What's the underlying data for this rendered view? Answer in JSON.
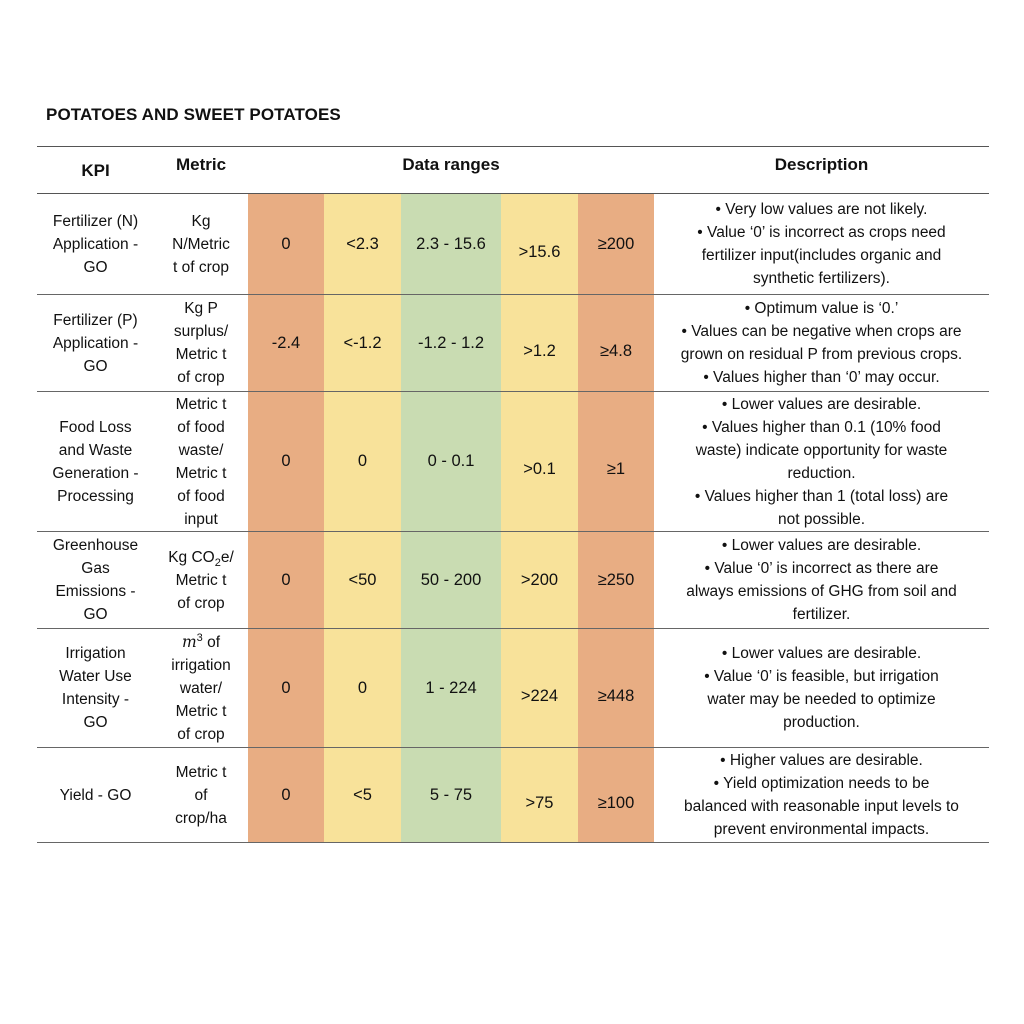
{
  "title": "POTATOES AND SWEET POTATOES",
  "headers": {
    "kpi": "KPI",
    "metric": "Metric",
    "ranges": "Data ranges",
    "description": "Description"
  },
  "colors": {
    "red_range": "#e8ad83",
    "yellow_range": "#f8e29a",
    "green_range": "#c9dcb2"
  },
  "rows": [
    {
      "kpi": [
        "Fertilizer (N)",
        "Application -",
        "GO"
      ],
      "metric": [
        "Kg",
        "N/Metric",
        "t of crop"
      ],
      "ranges": [
        "0",
        "<2.3",
        "2.3 - 15.6",
        ">15.6",
        "≥200"
      ],
      "description": [
        "• Very low values are not likely.",
        "• Value ‘0’ is incorrect as crops need",
        "fertilizer input(includes organic and",
        "synthetic fertilizers)."
      ]
    },
    {
      "kpi": [
        "Fertilizer (P)",
        "Application -",
        "GO"
      ],
      "metric": [
        "Kg P",
        "surplus/",
        "Metric t",
        "of crop"
      ],
      "ranges": [
        "-2.4",
        "<-1.2",
        "-1.2 - 1.2",
        ">1.2",
        "≥4.8"
      ],
      "description": [
        "• Optimum value is ‘0.’",
        "• Values can be negative when crops are",
        "grown on residual P from previous crops.",
        "• Values higher than ‘0’ may occur."
      ]
    },
    {
      "kpi": [
        "Food Loss",
        "and Waste",
        "Generation -",
        "Processing"
      ],
      "metric": [
        "Metric t",
        "of food",
        "waste/",
        "Metric t",
        "of food",
        "input"
      ],
      "ranges": [
        "0",
        "0",
        "0 - 0.1",
        ">0.1",
        "≥1"
      ],
      "description": [
        "• Lower values are desirable.",
        "• Values higher than 0.1 (10% food",
        "waste) indicate opportunity for waste",
        "reduction.",
        "• Values higher than 1 (total loss) are",
        "not possible."
      ]
    },
    {
      "kpi": [
        "Greenhouse",
        "Gas",
        "Emissions -",
        "GO"
      ],
      "metric_first": {
        "pre": "Kg CO",
        "sub": "2",
        "post": "e/"
      },
      "metric": [
        "Metric t",
        "of crop"
      ],
      "ranges": [
        "0",
        "<50",
        "50 - 200",
        ">200",
        "≥250"
      ],
      "description": [
        "• Lower values are desirable.",
        "• Value ‘0’ is incorrect as there are",
        "always emissions of GHG from soil and",
        "fertilizer."
      ]
    },
    {
      "kpi": [
        "Irrigation",
        "Water Use",
        "Intensity -",
        "GO"
      ],
      "metric_first": {
        "var": "m",
        "sup": "3",
        "post": " of"
      },
      "metric": [
        "irrigation",
        "water/",
        "Metric t",
        "of crop"
      ],
      "ranges": [
        "0",
        "0",
        "1 - 224",
        ">224",
        "≥448"
      ],
      "description": [
        "• Lower values are desirable.",
        "• Value ‘0’ is feasible, but irrigation",
        "water may be needed to optimize",
        "production."
      ]
    },
    {
      "kpi": [
        "Yield - GO"
      ],
      "metric": [
        "Metric t",
        "of",
        "crop/ha"
      ],
      "ranges": [
        "0",
        "<5",
        "5 - 75",
        ">75",
        "≥100"
      ],
      "description": [
        "• Higher values are desirable.",
        "• Yield optimization needs to be",
        "balanced with reasonable input levels to",
        "prevent environmental impacts."
      ]
    }
  ]
}
